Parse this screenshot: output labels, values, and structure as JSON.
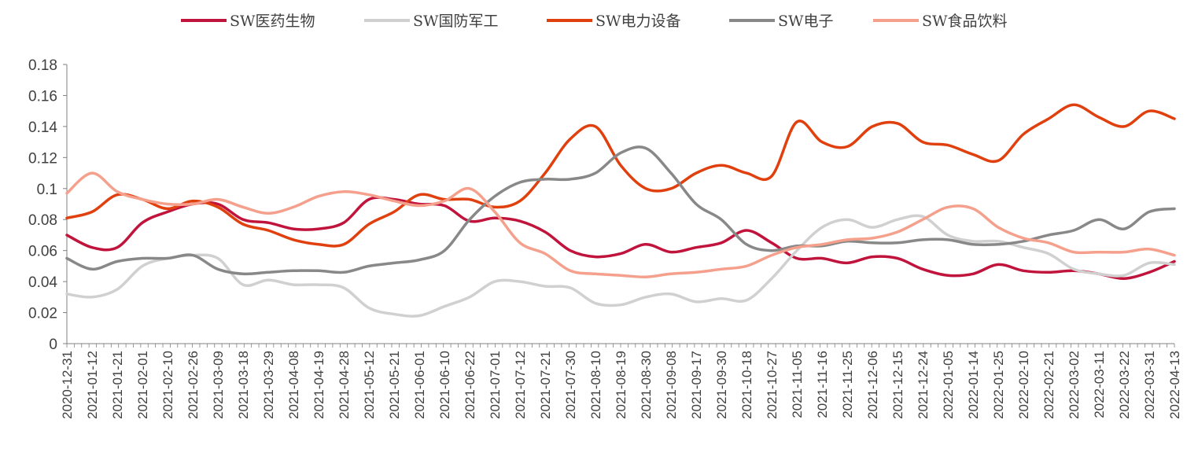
{
  "chart_data": {
    "type": "line",
    "title": "",
    "xlabel": "",
    "ylabel": "",
    "ylim": [
      0,
      0.18
    ],
    "yticks": [
      "0",
      "0.02",
      "0.04",
      "0.06",
      "0.08",
      "0.1",
      "0.12",
      "0.14",
      "0.16",
      "0.18"
    ],
    "grid": false,
    "legend_position": "top",
    "x": [
      "2020-12-31",
      "2021-01-12",
      "2021-01-21",
      "2021-02-01",
      "2021-02-10",
      "2021-02-26",
      "2021-03-09",
      "2021-03-18",
      "2021-03-29",
      "2021-04-08",
      "2021-04-19",
      "2021-04-28",
      "2021-05-12",
      "2021-05-21",
      "2021-06-01",
      "2021-06-10",
      "2021-06-22",
      "2021-07-01",
      "2021-07-12",
      "2021-07-21",
      "2021-07-30",
      "2021-08-10",
      "2021-08-19",
      "2021-08-30",
      "2021-09-08",
      "2021-09-17",
      "2021-09-30",
      "2021-10-18",
      "2021-10-27",
      "2021-11-05",
      "2021-11-16",
      "2021-11-25",
      "2021-12-06",
      "2021-12-15",
      "2021-12-24",
      "2022-01-05",
      "2022-01-14",
      "2022-01-25",
      "2022-02-10",
      "2022-02-21",
      "2022-03-02",
      "2022-03-11",
      "2022-03-22",
      "2022-03-31",
      "2022-04-13"
    ],
    "series": [
      {
        "name": "SW医药生物",
        "color": "#C0143C",
        "values": [
          0.07,
          0.062,
          0.062,
          0.078,
          0.085,
          0.09,
          0.09,
          0.08,
          0.078,
          0.074,
          0.074,
          0.078,
          0.093,
          0.093,
          0.09,
          0.089,
          0.079,
          0.081,
          0.079,
          0.072,
          0.06,
          0.056,
          0.058,
          0.064,
          0.059,
          0.062,
          0.065,
          0.073,
          0.065,
          0.055,
          0.055,
          0.052,
          0.056,
          0.055,
          0.048,
          0.044,
          0.045,
          0.051,
          0.047,
          0.046,
          0.047,
          0.045,
          0.042,
          0.046,
          0.053
        ]
      },
      {
        "name": "SW国防军工",
        "color": "#D0D0D0",
        "values": [
          0.032,
          0.03,
          0.035,
          0.05,
          0.055,
          0.057,
          0.055,
          0.038,
          0.041,
          0.038,
          0.038,
          0.036,
          0.023,
          0.019,
          0.018,
          0.024,
          0.03,
          0.04,
          0.04,
          0.037,
          0.036,
          0.026,
          0.025,
          0.03,
          0.032,
          0.027,
          0.029,
          0.028,
          0.042,
          0.06,
          0.075,
          0.08,
          0.075,
          0.08,
          0.082,
          0.07,
          0.066,
          0.066,
          0.062,
          0.058,
          0.048,
          0.045,
          0.044,
          0.052,
          0.051
        ]
      },
      {
        "name": "SW电力设备",
        "color": "#E0400E",
        "values": [
          0.081,
          0.085,
          0.096,
          0.093,
          0.087,
          0.092,
          0.088,
          0.077,
          0.073,
          0.067,
          0.064,
          0.064,
          0.077,
          0.085,
          0.096,
          0.093,
          0.093,
          0.088,
          0.092,
          0.11,
          0.132,
          0.14,
          0.115,
          0.1,
          0.1,
          0.11,
          0.115,
          0.11,
          0.108,
          0.143,
          0.13,
          0.127,
          0.14,
          0.142,
          0.13,
          0.128,
          0.122,
          0.118,
          0.135,
          0.145,
          0.154,
          0.146,
          0.14,
          0.15,
          0.145
        ]
      },
      {
        "name": "SW电子",
        "color": "#888888",
        "values": [
          0.055,
          0.048,
          0.053,
          0.055,
          0.055,
          0.057,
          0.048,
          0.045,
          0.046,
          0.047,
          0.047,
          0.046,
          0.05,
          0.052,
          0.054,
          0.06,
          0.08,
          0.095,
          0.104,
          0.106,
          0.106,
          0.11,
          0.123,
          0.126,
          0.11,
          0.09,
          0.08,
          0.064,
          0.06,
          0.063,
          0.063,
          0.066,
          0.065,
          0.065,
          0.067,
          0.067,
          0.064,
          0.064,
          0.066,
          0.07,
          0.073,
          0.08,
          0.074,
          0.085,
          0.087
        ]
      },
      {
        "name": "SW食品饮料",
        "color": "#F4A08C",
        "values": [
          0.097,
          0.11,
          0.098,
          0.093,
          0.09,
          0.09,
          0.093,
          0.088,
          0.084,
          0.088,
          0.095,
          0.098,
          0.096,
          0.092,
          0.089,
          0.092,
          0.1,
          0.085,
          0.065,
          0.058,
          0.047,
          0.045,
          0.044,
          0.043,
          0.045,
          0.046,
          0.048,
          0.05,
          0.057,
          0.062,
          0.064,
          0.067,
          0.068,
          0.072,
          0.08,
          0.088,
          0.087,
          0.075,
          0.068,
          0.065,
          0.059,
          0.059,
          0.059,
          0.061,
          0.057
        ]
      }
    ]
  }
}
